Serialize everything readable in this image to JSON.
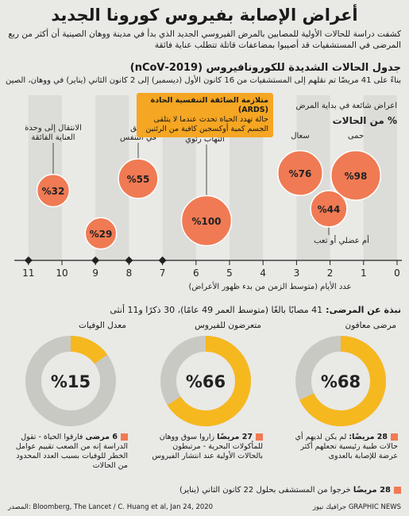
{
  "title": "أعراض الإصابة بفيروس كورونا الجديد",
  "subtitle": "كشفت دراسة للحالات الأولية للمصابين بالمرض الفيروسي الجديد الذي بدأ في مدينة ووهان الصينية أن أكثر من ربع المرضى في المستشفيات قد أصيبوا بمضاعفات قاتلة تتطلب عناية فائقة",
  "timeline_title": "جدول الحالات الشديدة للكورونافيروس (2019-nCoV)",
  "timeline_subtitle": "بناءً على 41 مريضًا تم نقلهم إلى المستشفيات من 16 كانون الأول (ديسمبر) إلى 2 كانون الثاني (يناير) في ووهان، الصين",
  "ards": {
    "heading": "متلازمة الضائقة التنفسية الحادة (ARDS)",
    "text": "حالة تهدد الحياة تحدث عندما لا يتلقى الجسم كمية أوكسجين كافية من الرئتين"
  },
  "common_symptoms_label": "اعراض شائعة في بداية المرض",
  "cases_pct_label": "% من الحالات",
  "chart_data": {
    "type": "bubble",
    "x_axis_ticks": [
      0,
      1,
      2,
      3,
      4,
      5,
      6,
      7,
      8,
      9,
      10,
      11
    ],
    "xlabel": "عدد الأيام (متوسط الزمن من بدء ظهور الأعراض)",
    "xlim": [
      0,
      11.5
    ],
    "markers": [
      7,
      8,
      9,
      11
    ],
    "events": [
      {
        "label": "حمى",
        "pct": 98,
        "day": 1
      },
      {
        "label": "سعال",
        "pct": 76,
        "day": 2.7
      },
      {
        "label": "أم عضلي أو تعب",
        "pct": 44,
        "day": 2.3
      },
      {
        "label": "الانتقال إلى المستشفى بسبب التهاب رئوي",
        "pct": 100,
        "day": 7
      },
      {
        "label": "ضيق في التنفس",
        "pct": 55,
        "day": 8
      },
      {
        "label": "",
        "pct": 29,
        "day": 9
      },
      {
        "label": "الانتقال إلى وحدة العناية الفائقة",
        "pct": 32,
        "day": 10.5
      }
    ]
  },
  "profile_title": "نبذة عن المرضى:",
  "profile_text": "41 مصابًا بالغًا (متوسط العمر 49 عامًا)، 30 ذكرًا و11 أنثى",
  "donuts": [
    {
      "label": "مرضى معافون",
      "pct": 68,
      "pct_text": "%68",
      "note_bold": "28 مريضًا:",
      "note": " لم يكن لديهم أي حالات طبية رئيسية تجعلهم أكثر عرضة للإصابة بالعدوى"
    },
    {
      "label": "متعرضون للفيروس",
      "pct": 66,
      "pct_text": "%66",
      "note_bold": "27 مريضًا",
      "note": " زاروا سوق ووهان للمأكولات البحرية - مرتبطون بالحالات الأولية عند انتشار الفيروس"
    },
    {
      "label": "معدل الوفيات",
      "pct": 15,
      "pct_text": "%15",
      "note_bold": "6 مرضى",
      "note": " فارقوا الحياة - تقول الدراسة إنه من الصعب تقييم عوامل الخطر للوفيات بسبب العدد المحدود من الحالات"
    }
  ],
  "discharge_note_bold": "28 مريضًا",
  "discharge_note": " خرجوا من المستشفى بحلول 22 كانون الثاني (يناير)",
  "sources": "المصدر: Bloomberg, The Lancet / C. Huang et al, Jan 24, 2020",
  "brand": "GRAPHIC NEWS جرافيك نيوز",
  "colors": {
    "bubble": "#f07a53",
    "ards": "#f5a623",
    "donut_fill": "#f6b81f",
    "donut_rest": "#c9c9c4"
  }
}
